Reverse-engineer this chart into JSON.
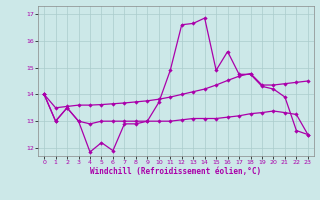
{
  "xlabel": "Windchill (Refroidissement éolien,°C)",
  "background_color": "#cce8e8",
  "grid_color": "#aacccc",
  "line_color": "#aa00aa",
  "xlim": [
    -0.5,
    23.5
  ],
  "ylim": [
    11.7,
    17.3
  ],
  "yticks": [
    12,
    13,
    14,
    15,
    16,
    17
  ],
  "xticks": [
    0,
    1,
    2,
    3,
    4,
    5,
    6,
    7,
    8,
    9,
    10,
    11,
    12,
    13,
    14,
    15,
    16,
    17,
    18,
    19,
    20,
    21,
    22,
    23
  ],
  "line1_x": [
    0,
    1,
    2,
    3,
    4,
    5,
    6,
    7,
    8,
    9,
    10,
    11,
    12,
    13,
    14,
    15,
    16,
    17,
    18,
    19,
    20,
    21,
    22,
    23
  ],
  "line1_y": [
    14.0,
    13.0,
    13.5,
    13.0,
    11.85,
    12.2,
    11.9,
    12.9,
    12.9,
    13.0,
    13.7,
    14.9,
    16.6,
    16.65,
    16.85,
    14.9,
    15.6,
    14.75,
    14.75,
    14.3,
    14.2,
    13.9,
    12.65,
    12.5
  ],
  "line2_x": [
    0,
    1,
    2,
    3,
    4,
    5,
    6,
    7,
    8,
    9,
    10,
    11,
    12,
    13,
    14,
    15,
    16,
    17,
    18,
    19,
    20,
    21,
    22,
    23
  ],
  "line2_y": [
    14.0,
    13.5,
    13.55,
    13.6,
    13.6,
    13.62,
    13.65,
    13.68,
    13.72,
    13.76,
    13.82,
    13.9,
    14.0,
    14.1,
    14.2,
    14.35,
    14.52,
    14.68,
    14.78,
    14.35,
    14.35,
    14.4,
    14.45,
    14.5
  ],
  "line3_x": [
    0,
    1,
    2,
    3,
    4,
    5,
    6,
    7,
    8,
    9,
    10,
    11,
    12,
    13,
    14,
    15,
    16,
    17,
    18,
    19,
    20,
    21,
    22,
    23
  ],
  "line3_y": [
    14.0,
    13.0,
    13.5,
    13.0,
    12.9,
    13.0,
    13.0,
    13.0,
    13.0,
    13.0,
    13.0,
    13.0,
    13.05,
    13.1,
    13.1,
    13.1,
    13.15,
    13.2,
    13.28,
    13.32,
    13.38,
    13.32,
    13.25,
    12.5
  ]
}
